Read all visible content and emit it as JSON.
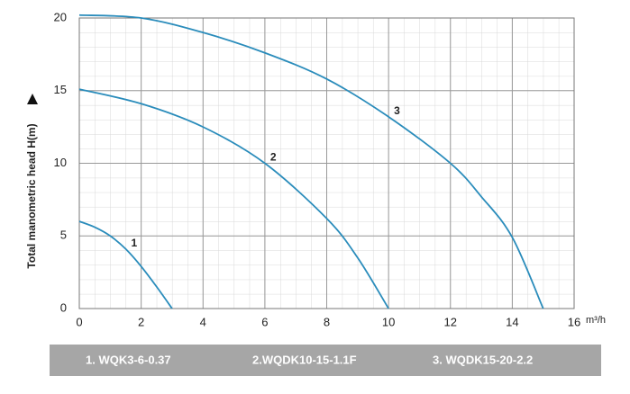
{
  "chart_data": {
    "type": "line",
    "ylabel": "Total manometric head H(m)",
    "xlabel": "m³/h",
    "xlim": [
      0,
      16
    ],
    "xticks": [
      0,
      2,
      4,
      6,
      8,
      10,
      12,
      14,
      16
    ],
    "ylim": [
      0,
      20
    ],
    "yticks": [
      0,
      5,
      10,
      15,
      20
    ],
    "grid": true,
    "legend": "bottom",
    "series": [
      {
        "name": "1. WQK3-6-0.37",
        "label": "1",
        "color": "#2a8cbb",
        "x": [
          0,
          0.5,
          1,
          1.5,
          2,
          2.5,
          3
        ],
        "values": [
          6,
          5.6,
          5,
          4.1,
          2.9,
          1.5,
          0
        ]
      },
      {
        "name": "2.WQDK10-15-1.1F",
        "label": "2",
        "color": "#2a8cbb",
        "x": [
          0,
          2,
          4,
          6,
          8,
          9,
          10
        ],
        "values": [
          15.1,
          14.1,
          12.5,
          10,
          6.2,
          3.5,
          0
        ]
      },
      {
        "name": "3. WQDK15-20-2.2",
        "label": "3",
        "color": "#2a8cbb",
        "x": [
          0,
          2,
          4,
          6,
          8,
          10,
          12,
          13,
          14,
          15
        ],
        "values": [
          20.2,
          20,
          19,
          17.6,
          15.8,
          13.2,
          10,
          7.7,
          4.9,
          0
        ]
      }
    ]
  }
}
